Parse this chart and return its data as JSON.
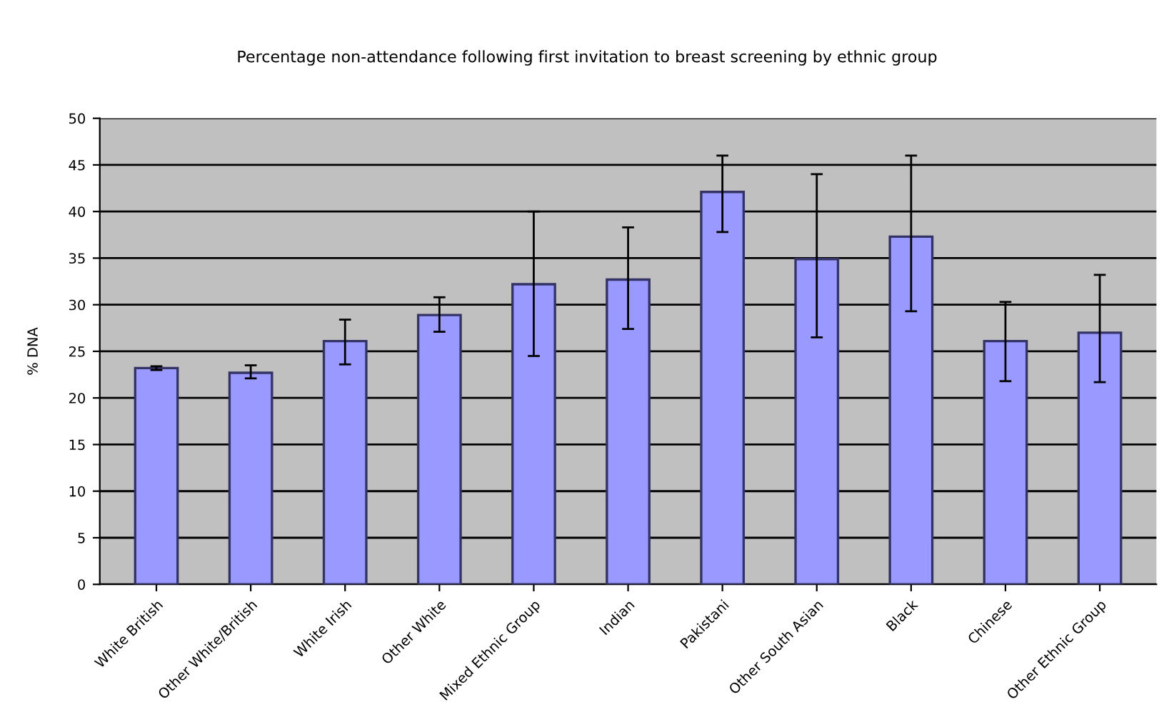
{
  "chart_data": {
    "type": "bar",
    "title": "Percentage non-attendance following first invitation to breast screening by ethnic group",
    "ylabel": "% DNA",
    "categories": [
      "White British",
      "Other White/British",
      "White Irish",
      "Other White",
      "Mixed Ethnic Group",
      "Indian",
      "Pakistani",
      "Other South Asian",
      "Black",
      "Chinese",
      "Other Ethnic Group"
    ],
    "values": [
      23.2,
      22.7,
      26.1,
      28.9,
      32.2,
      32.7,
      42.1,
      34.9,
      37.3,
      26.1,
      27.0
    ],
    "errors": [
      [
        23.0,
        23.4
      ],
      [
        22.1,
        23.5
      ],
      [
        23.6,
        28.4
      ],
      [
        27.1,
        30.8
      ],
      [
        24.5,
        40.0
      ],
      [
        27.4,
        38.3
      ],
      [
        37.8,
        46.0
      ],
      [
        26.5,
        44.0
      ],
      [
        29.3,
        46.0
      ],
      [
        21.8,
        30.3
      ],
      [
        21.7,
        33.2
      ]
    ],
    "color": "#9999ff",
    "ylim": [
      0,
      50
    ],
    "yticks": [
      0,
      5,
      10,
      15,
      20,
      25,
      30,
      35,
      40,
      45,
      50
    ],
    "grid": "y"
  }
}
